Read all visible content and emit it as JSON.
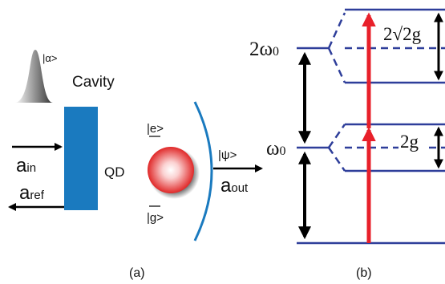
{
  "panel_a": {
    "label": "(a)",
    "cavity": "Cavity",
    "input_state": "|α>",
    "input_mode": {
      "symbol": "a",
      "sub": "in"
    },
    "reflected_mode": {
      "symbol": "a",
      "sub": "ref"
    },
    "qd": "QD",
    "excited": "|e>",
    "ground": "|g>",
    "output_state": "|ψ>",
    "output_mode": {
      "symbol": "a",
      "sub": "out"
    }
  },
  "panel_b": {
    "label": "(b)",
    "level_2": {
      "symbol": "2ω",
      "sub": "0"
    },
    "level_1": {
      "symbol": "ω",
      "sub": "0"
    },
    "upper_splitting": "2√2g",
    "lower_splitting": "2g"
  }
}
